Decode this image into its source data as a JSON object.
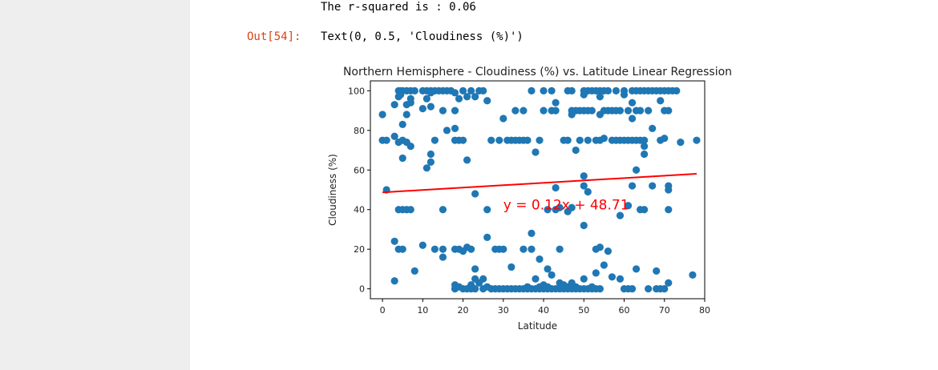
{
  "cell": {
    "stream_output": "The r-squared is : 0.06",
    "out_prompt": "Out[54]:",
    "out_result": "Text(0, 0.5, 'Cloudiness (%)')"
  },
  "colors": {
    "points": "#1f77b4",
    "regression_line": "#ff0000",
    "annotation": "#ff0000",
    "out_prompt": "#d84315"
  },
  "chart_data": {
    "type": "scatter",
    "title": "Northern Hemisphere - Cloudiness (%) vs. Latitude Linear Regression",
    "xlabel": "Latitude",
    "ylabel": "Cloudiness (%)",
    "xlim": [
      -3,
      80
    ],
    "ylim": [
      -5,
      105
    ],
    "xticks": [
      "0",
      "10",
      "20",
      "30",
      "40",
      "50",
      "60",
      "70",
      "80"
    ],
    "yticks": [
      "0",
      "20",
      "40",
      "60",
      "80",
      "100"
    ],
    "grid": false,
    "legend": "none",
    "annotation": "y = 0.12x + 48.71",
    "regression": {
      "slope": 0.12,
      "intercept": 48.71,
      "x_start": 0,
      "x_end": 78
    },
    "points": [
      [
        4,
        100
      ],
      [
        4.5,
        100
      ],
      [
        5,
        100
      ],
      [
        6,
        100
      ],
      [
        7,
        100
      ],
      [
        8,
        100
      ],
      [
        10,
        100
      ],
      [
        11,
        100
      ],
      [
        12,
        100
      ],
      [
        13,
        100
      ],
      [
        14,
        100
      ],
      [
        15,
        100
      ],
      [
        16,
        100
      ],
      [
        17,
        100
      ],
      [
        18,
        99
      ],
      [
        20,
        100
      ],
      [
        22,
        100
      ],
      [
        24,
        100
      ],
      [
        25,
        100
      ],
      [
        37,
        100
      ],
      [
        40,
        100
      ],
      [
        42,
        100
      ],
      [
        46,
        100
      ],
      [
        47,
        100
      ],
      [
        50,
        100
      ],
      [
        51,
        100
      ],
      [
        52,
        100
      ],
      [
        53,
        100
      ],
      [
        54,
        100
      ],
      [
        55,
        100
      ],
      [
        56,
        100
      ],
      [
        58,
        100
      ],
      [
        60,
        100
      ],
      [
        62,
        100
      ],
      [
        63,
        100
      ],
      [
        64,
        100
      ],
      [
        65,
        100
      ],
      [
        66,
        100
      ],
      [
        67,
        100
      ],
      [
        68,
        100
      ],
      [
        69,
        100
      ],
      [
        70,
        100
      ],
      [
        71,
        100
      ],
      [
        72,
        100
      ],
      [
        73,
        100
      ],
      [
        4,
        97
      ],
      [
        4.5,
        98
      ],
      [
        7,
        96
      ],
      [
        11,
        96
      ],
      [
        12,
        99
      ],
      [
        19,
        96
      ],
      [
        21,
        97
      ],
      [
        23,
        97
      ],
      [
        26,
        95
      ],
      [
        43,
        94
      ],
      [
        50,
        98
      ],
      [
        54,
        97
      ],
      [
        60,
        98
      ],
      [
        62,
        94
      ],
      [
        69,
        95
      ],
      [
        3,
        93
      ],
      [
        6,
        93
      ],
      [
        7,
        94
      ],
      [
        10,
        91
      ],
      [
        12,
        92
      ],
      [
        15,
        90
      ],
      [
        18,
        90
      ],
      [
        33,
        90
      ],
      [
        35,
        90
      ],
      [
        40,
        90
      ],
      [
        42,
        90
      ],
      [
        43,
        90
      ],
      [
        47,
        90
      ],
      [
        48,
        90
      ],
      [
        49,
        90
      ],
      [
        50,
        90
      ],
      [
        51,
        90
      ],
      [
        52,
        90
      ],
      [
        55,
        90
      ],
      [
        56,
        90
      ],
      [
        57,
        90
      ],
      [
        58,
        90
      ],
      [
        59,
        90
      ],
      [
        61,
        90
      ],
      [
        63,
        90
      ],
      [
        64,
        90
      ],
      [
        66,
        90
      ],
      [
        70,
        90
      ],
      [
        71,
        90
      ],
      [
        0,
        88
      ],
      [
        6,
        88
      ],
      [
        30,
        86
      ],
      [
        47,
        88
      ],
      [
        54,
        88
      ],
      [
        62,
        86
      ],
      [
        5,
        83
      ],
      [
        18,
        81
      ],
      [
        16,
        80
      ],
      [
        67,
        81
      ],
      [
        0,
        75
      ],
      [
        1,
        75
      ],
      [
        3,
        77
      ],
      [
        4,
        74
      ],
      [
        5,
        75
      ],
      [
        6,
        74
      ],
      [
        13,
        75
      ],
      [
        18,
        75
      ],
      [
        19,
        75
      ],
      [
        20,
        75
      ],
      [
        27,
        75
      ],
      [
        29,
        75
      ],
      [
        31,
        75
      ],
      [
        32,
        75
      ],
      [
        33,
        75
      ],
      [
        34,
        75
      ],
      [
        35,
        75
      ],
      [
        36,
        75
      ],
      [
        39,
        75
      ],
      [
        45,
        75
      ],
      [
        46,
        75
      ],
      [
        49,
        75
      ],
      [
        51,
        75
      ],
      [
        53,
        75
      ],
      [
        54,
        75
      ],
      [
        55,
        76
      ],
      [
        57,
        75
      ],
      [
        58,
        75
      ],
      [
        59,
        75
      ],
      [
        60,
        75
      ],
      [
        61,
        75
      ],
      [
        62,
        75
      ],
      [
        63,
        75
      ],
      [
        64,
        75
      ],
      [
        65,
        75
      ],
      [
        69,
        75
      ],
      [
        70,
        76
      ],
      [
        74,
        74
      ],
      [
        78,
        75
      ],
      [
        7,
        72
      ],
      [
        38,
        69
      ],
      [
        48,
        70
      ],
      [
        65,
        72
      ],
      [
        5,
        66
      ],
      [
        12,
        68
      ],
      [
        65,
        68
      ],
      [
        12,
        64
      ],
      [
        21,
        65
      ],
      [
        11,
        61
      ],
      [
        63,
        60
      ],
      [
        50,
        57
      ],
      [
        50,
        52
      ],
      [
        62,
        52
      ],
      [
        67,
        52
      ],
      [
        71,
        52
      ],
      [
        71,
        50
      ],
      [
        51,
        49
      ],
      [
        23,
        48
      ],
      [
        1,
        50
      ],
      [
        43,
        51
      ],
      [
        4,
        40
      ],
      [
        5,
        40
      ],
      [
        6,
        40
      ],
      [
        7,
        40
      ],
      [
        15,
        40
      ],
      [
        26,
        40
      ],
      [
        41,
        40
      ],
      [
        43,
        40
      ],
      [
        44,
        41
      ],
      [
        46,
        39
      ],
      [
        47,
        41
      ],
      [
        64,
        40
      ],
      [
        65,
        40
      ],
      [
        71,
        40
      ],
      [
        61,
        42
      ],
      [
        59,
        37
      ],
      [
        50,
        32
      ],
      [
        37,
        28
      ],
      [
        26,
        26
      ],
      [
        3,
        24
      ],
      [
        10,
        22
      ],
      [
        4,
        20
      ],
      [
        5,
        20
      ],
      [
        13,
        20
      ],
      [
        15,
        20
      ],
      [
        18,
        20
      ],
      [
        19,
        20
      ],
      [
        20,
        19
      ],
      [
        21,
        21
      ],
      [
        22,
        20
      ],
      [
        28,
        20
      ],
      [
        29,
        20
      ],
      [
        30,
        20
      ],
      [
        35,
        20
      ],
      [
        37,
        20
      ],
      [
        44,
        20
      ],
      [
        53,
        20
      ],
      [
        54,
        21
      ],
      [
        56,
        19
      ],
      [
        15,
        16
      ],
      [
        39,
        15
      ],
      [
        55,
        12
      ],
      [
        32,
        11
      ],
      [
        41,
        10
      ],
      [
        23,
        10
      ],
      [
        63,
        10
      ],
      [
        68,
        9
      ],
      [
        8,
        9
      ],
      [
        77,
        7
      ],
      [
        42,
        7
      ],
      [
        53,
        8
      ],
      [
        3,
        4
      ],
      [
        23,
        5
      ],
      [
        25,
        5
      ],
      [
        38,
        5
      ],
      [
        50,
        5
      ],
      [
        57,
        6
      ],
      [
        59,
        5
      ],
      [
        44,
        3
      ],
      [
        47,
        3
      ],
      [
        71,
        3
      ],
      [
        18,
        2
      ],
      [
        19,
        1
      ],
      [
        22,
        2
      ],
      [
        24,
        3
      ],
      [
        18,
        0
      ],
      [
        20,
        0
      ],
      [
        21,
        0
      ],
      [
        22,
        0
      ],
      [
        23,
        0
      ],
      [
        25,
        0
      ],
      [
        27,
        0
      ],
      [
        28,
        0
      ],
      [
        29,
        0
      ],
      [
        30,
        0
      ],
      [
        31,
        0
      ],
      [
        32,
        0
      ],
      [
        33,
        0
      ],
      [
        34,
        0
      ],
      [
        35,
        0
      ],
      [
        36,
        0
      ],
      [
        37,
        0
      ],
      [
        38,
        0
      ],
      [
        39,
        0
      ],
      [
        40,
        0
      ],
      [
        41,
        0
      ],
      [
        42,
        0
      ],
      [
        43,
        0
      ],
      [
        44,
        0
      ],
      [
        45,
        0
      ],
      [
        46,
        0
      ],
      [
        47,
        0
      ],
      [
        48,
        0
      ],
      [
        49,
        0
      ],
      [
        50,
        0
      ],
      [
        51,
        0
      ],
      [
        52,
        0
      ],
      [
        53,
        0
      ],
      [
        54,
        0
      ],
      [
        60,
        0
      ],
      [
        61,
        0
      ],
      [
        62,
        0
      ],
      [
        66,
        0
      ],
      [
        68,
        0
      ],
      [
        69,
        0
      ],
      [
        70,
        0
      ],
      [
        26,
        1
      ],
      [
        36,
        1
      ],
      [
        39,
        1
      ],
      [
        41,
        1
      ],
      [
        46,
        1
      ],
      [
        48,
        1
      ],
      [
        52,
        1
      ],
      [
        40,
        2
      ],
      [
        45,
        2
      ]
    ]
  }
}
